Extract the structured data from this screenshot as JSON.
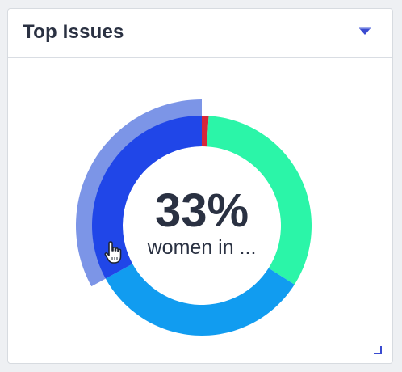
{
  "widget": {
    "title": "Top Issues",
    "dropdown_icon": "dropdown-caret-icon",
    "resize_icon": "resize-corner-icon"
  },
  "donut": {
    "center_value": "33%",
    "center_label": "women in ...",
    "hovered_segment": "women in ...",
    "cursor_icon": "hand-pointer-icon"
  },
  "chart_data": {
    "type": "pie",
    "title": "",
    "center_value": "33%",
    "center_label": "women in ...",
    "segments": [
      {
        "value": 1,
        "color": "#d6273a"
      },
      {
        "value": 33,
        "color": "#2bf5a8"
      },
      {
        "value": 33,
        "color": "#119cf0"
      },
      {
        "value": 33,
        "color": "#2046e8",
        "hover_color": "#7c95e7",
        "hovered": true
      }
    ]
  },
  "colors": {
    "title_text": "#2a3142",
    "accent_caret": "#3a4bd0"
  }
}
